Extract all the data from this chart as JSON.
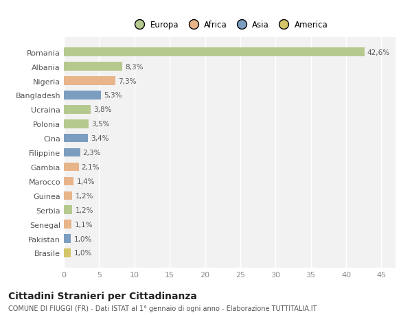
{
  "countries": [
    "Romania",
    "Albania",
    "Nigeria",
    "Bangladesh",
    "Ucraina",
    "Polonia",
    "Cina",
    "Filippine",
    "Gambia",
    "Marocco",
    "Guinea",
    "Serbia",
    "Senegal",
    "Pakistan",
    "Brasile"
  ],
  "values": [
    42.6,
    8.3,
    7.3,
    5.3,
    3.8,
    3.5,
    3.4,
    2.3,
    2.1,
    1.4,
    1.2,
    1.2,
    1.1,
    1.0,
    1.0
  ],
  "labels": [
    "42,6%",
    "8,3%",
    "7,3%",
    "5,3%",
    "3,8%",
    "3,5%",
    "3,4%",
    "2,3%",
    "2,1%",
    "1,4%",
    "1,2%",
    "1,2%",
    "1,1%",
    "1,0%",
    "1,0%"
  ],
  "colors": [
    "#b5c98e",
    "#b5c98e",
    "#e8b48a",
    "#7b9dc0",
    "#b5c98e",
    "#b5c98e",
    "#7b9dc0",
    "#7b9dc0",
    "#e8b48a",
    "#e8b48a",
    "#e8b48a",
    "#b5c98e",
    "#e8b48a",
    "#7b9dc0",
    "#d4c46a"
  ],
  "continent": [
    "Europa",
    "Europa",
    "Africa",
    "Asia",
    "Europa",
    "Europa",
    "Asia",
    "Asia",
    "Africa",
    "Africa",
    "Africa",
    "Europa",
    "Africa",
    "Asia",
    "America"
  ],
  "legend_labels": [
    "Europa",
    "Africa",
    "Asia",
    "America"
  ],
  "legend_colors": [
    "#b5c98e",
    "#e8b48a",
    "#7b9dc0",
    "#d4c46a"
  ],
  "title": "Cittadini Stranieri per Cittadinanza",
  "subtitle": "COMUNE DI FIUGGI (FR) - Dati ISTAT al 1° gennaio di ogni anno - Elaborazione TUTTITALIA.IT",
  "xlim": [
    0,
    47
  ],
  "xticks": [
    0,
    5,
    10,
    15,
    20,
    25,
    30,
    35,
    40,
    45
  ],
  "background_color": "#ffffff",
  "plot_bg_color": "#f2f2f2",
  "grid_color": "#ffffff",
  "bar_height": 0.6,
  "label_fontsize": 7.5,
  "tick_fontsize": 8.0,
  "legend_fontsize": 8.5,
  "title_fontsize": 10,
  "subtitle_fontsize": 7.0
}
